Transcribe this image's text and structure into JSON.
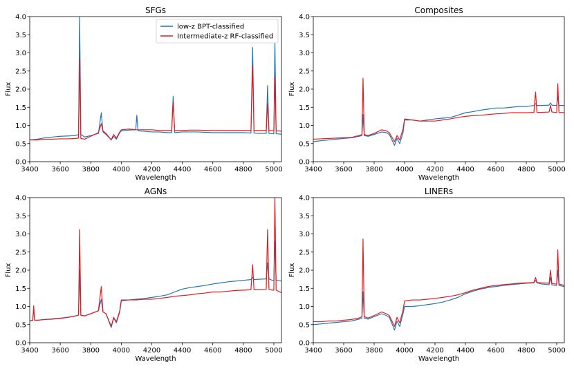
{
  "colors": {
    "low_z": "#1f77b4",
    "intermediate_z": "#e41a1c"
  },
  "chart_data": [
    {
      "type": "line",
      "title": "SFGs",
      "xlabel": "Wavelength",
      "ylabel": "Flux",
      "xlim": [
        3400,
        5050
      ],
      "ylim": [
        0,
        4.0
      ],
      "xticks": [
        "3400",
        "3600",
        "3800",
        "4000",
        "4200",
        "4400",
        "4600",
        "4800",
        "5000"
      ],
      "yticks": [
        "0.0",
        "0.5",
        "1.0",
        "1.5",
        "2.0",
        "2.5",
        "3.0",
        "3.5",
        "4.0"
      ],
      "legend": {
        "position": "top-right",
        "entries": [
          "low-z BPT-classified",
          "Intermediate-z RF-classified"
        ]
      },
      "series": [
        {
          "name": "low-z BPT-classified",
          "x": [
            3400,
            3450,
            3500,
            3550,
            3600,
            3650,
            3700,
            3720,
            3727,
            3735,
            3760,
            3800,
            3850,
            3869,
            3880,
            3900,
            3934,
            3950,
            3968,
            3990,
            4000,
            4050,
            4095,
            4102,
            4110,
            4150,
            4200,
            4250,
            4300,
            4330,
            4340,
            4350,
            4400,
            4450,
            4500,
            4600,
            4700,
            4800,
            4850,
            4861,
            4870,
            4900,
            4950,
            4959,
            4968,
            4990,
            5000,
            5007,
            5015,
            5050
          ],
          "y": [
            0.6,
            0.62,
            0.66,
            0.68,
            0.7,
            0.71,
            0.72,
            0.75,
            4.0,
            0.75,
            0.68,
            0.72,
            0.78,
            1.35,
            0.82,
            0.75,
            0.6,
            0.7,
            0.62,
            0.8,
            0.85,
            0.87,
            0.88,
            1.28,
            0.85,
            0.84,
            0.82,
            0.82,
            0.8,
            0.8,
            1.8,
            0.8,
            0.82,
            0.82,
            0.82,
            0.8,
            0.8,
            0.8,
            0.79,
            3.15,
            0.79,
            0.78,
            0.78,
            2.1,
            0.78,
            0.77,
            0.77,
            3.3,
            0.77,
            0.76
          ]
        },
        {
          "name": "Intermediate-z RF-classified",
          "x": [
            3400,
            3450,
            3500,
            3550,
            3600,
            3650,
            3700,
            3720,
            3727,
            3735,
            3760,
            3800,
            3850,
            3869,
            3880,
            3900,
            3934,
            3950,
            3968,
            3990,
            4000,
            4050,
            4102,
            4150,
            4200,
            4250,
            4300,
            4330,
            4340,
            4350,
            4400,
            4450,
            4500,
            4600,
            4700,
            4800,
            4850,
            4861,
            4870,
            4900,
            4950,
            4959,
            4968,
            4990,
            5000,
            5007,
            5015,
            5050
          ],
          "y": [
            0.6,
            0.6,
            0.62,
            0.62,
            0.63,
            0.63,
            0.64,
            0.65,
            2.85,
            0.64,
            0.62,
            0.7,
            0.8,
            1.05,
            0.85,
            0.78,
            0.6,
            0.75,
            0.65,
            0.82,
            0.88,
            0.9,
            0.88,
            0.88,
            0.88,
            0.86,
            0.86,
            0.86,
            1.65,
            0.86,
            0.86,
            0.87,
            0.87,
            0.86,
            0.86,
            0.86,
            0.86,
            2.65,
            0.86,
            0.86,
            0.86,
            1.6,
            0.86,
            0.85,
            0.85,
            2.35,
            0.85,
            0.84
          ]
        }
      ]
    },
    {
      "type": "line",
      "title": "Composites",
      "xlabel": "Wavelength",
      "ylabel": "Flux",
      "xlim": [
        3400,
        5050
      ],
      "ylim": [
        0,
        4.0
      ],
      "xticks": [
        "3400",
        "3600",
        "3800",
        "4000",
        "4200",
        "4400",
        "4600",
        "4800",
        "5000"
      ],
      "yticks": [
        "0.0",
        "0.5",
        "1.0",
        "1.5",
        "2.0",
        "2.5",
        "3.0",
        "3.5",
        "4.0"
      ],
      "series": [
        {
          "name": "low-z BPT-classified",
          "x": [
            3400,
            3450,
            3500,
            3550,
            3600,
            3650,
            3700,
            3720,
            3727,
            3735,
            3760,
            3800,
            3850,
            3880,
            3900,
            3934,
            3950,
            3968,
            3990,
            4000,
            4050,
            4100,
            4150,
            4200,
            4250,
            4300,
            4350,
            4400,
            4450,
            4500,
            4550,
            4600,
            4650,
            4700,
            4750,
            4800,
            4850,
            4861,
            4870,
            4900,
            4950,
            4959,
            4968,
            4990,
            5000,
            5007,
            5015,
            5050
          ],
          "y": [
            0.55,
            0.58,
            0.6,
            0.62,
            0.64,
            0.66,
            0.7,
            0.72,
            1.3,
            0.72,
            0.7,
            0.75,
            0.82,
            0.8,
            0.75,
            0.45,
            0.65,
            0.5,
            0.8,
            1.15,
            1.15,
            1.12,
            1.15,
            1.18,
            1.2,
            1.22,
            1.28,
            1.35,
            1.38,
            1.42,
            1.45,
            1.48,
            1.48,
            1.5,
            1.52,
            1.52,
            1.55,
            1.6,
            1.55,
            1.55,
            1.56,
            1.62,
            1.56,
            1.55,
            1.55,
            1.8,
            1.55,
            1.55
          ]
        },
        {
          "name": "Intermediate-z RF-classified",
          "x": [
            3400,
            3450,
            3500,
            3550,
            3600,
            3650,
            3700,
            3720,
            3727,
            3735,
            3760,
            3800,
            3850,
            3880,
            3900,
            3934,
            3950,
            3968,
            3990,
            4000,
            4050,
            4100,
            4150,
            4200,
            4250,
            4300,
            4350,
            4400,
            4450,
            4500,
            4550,
            4600,
            4650,
            4700,
            4750,
            4800,
            4850,
            4861,
            4870,
            4900,
            4950,
            4959,
            4968,
            4990,
            5000,
            5007,
            5015,
            5050
          ],
          "y": [
            0.62,
            0.63,
            0.64,
            0.65,
            0.66,
            0.67,
            0.72,
            0.75,
            2.3,
            0.75,
            0.72,
            0.78,
            0.88,
            0.85,
            0.8,
            0.55,
            0.72,
            0.6,
            0.9,
            1.18,
            1.15,
            1.12,
            1.12,
            1.12,
            1.15,
            1.18,
            1.22,
            1.25,
            1.27,
            1.28,
            1.3,
            1.32,
            1.33,
            1.35,
            1.35,
            1.35,
            1.36,
            1.92,
            1.36,
            1.36,
            1.37,
            1.55,
            1.37,
            1.36,
            1.36,
            2.15,
            1.36,
            1.35
          ]
        }
      ]
    },
    {
      "type": "line",
      "title": "AGNs",
      "xlabel": "Wavelength",
      "ylabel": "Flux",
      "xlim": [
        3400,
        5050
      ],
      "ylim": [
        0,
        4.0
      ],
      "xticks": [
        "3400",
        "3600",
        "3800",
        "4000",
        "4200",
        "4400",
        "4600",
        "4800",
        "5000"
      ],
      "yticks": [
        "0.0",
        "0.5",
        "1.0",
        "1.5",
        "2.0",
        "2.5",
        "3.0",
        "3.5",
        "4.0"
      ],
      "series": [
        {
          "name": "low-z BPT-classified",
          "x": [
            3400,
            3420,
            3426,
            3432,
            3450,
            3500,
            3550,
            3600,
            3650,
            3700,
            3720,
            3727,
            3735,
            3760,
            3800,
            3850,
            3869,
            3880,
            3900,
            3934,
            3950,
            3968,
            3990,
            4000,
            4050,
            4100,
            4150,
            4200,
            4250,
            4300,
            4350,
            4400,
            4450,
            4500,
            4550,
            4600,
            4650,
            4700,
            4750,
            4800,
            4850,
            4861,
            4870,
            4900,
            4950,
            4959,
            4968,
            4990,
            5000,
            5007,
            5015,
            5050
          ],
          "y": [
            0.6,
            0.62,
            0.95,
            0.62,
            0.62,
            0.64,
            0.66,
            0.68,
            0.7,
            0.74,
            0.76,
            2.0,
            0.76,
            0.74,
            0.8,
            0.88,
            1.2,
            0.85,
            0.8,
            0.42,
            0.68,
            0.55,
            0.85,
            1.15,
            1.18,
            1.2,
            1.22,
            1.25,
            1.28,
            1.32,
            1.4,
            1.48,
            1.52,
            1.55,
            1.58,
            1.62,
            1.65,
            1.68,
            1.7,
            1.72,
            1.74,
            1.8,
            1.74,
            1.75,
            1.76,
            2.2,
            1.76,
            1.72,
            1.72,
            2.8,
            1.72,
            1.7
          ]
        },
        {
          "name": "Intermediate-z RF-classified",
          "x": [
            3400,
            3420,
            3426,
            3432,
            3450,
            3500,
            3550,
            3600,
            3650,
            3700,
            3720,
            3727,
            3735,
            3760,
            3800,
            3850,
            3869,
            3880,
            3900,
            3934,
            3950,
            3968,
            3990,
            4000,
            4050,
            4100,
            4150,
            4200,
            4250,
            4300,
            4350,
            4400,
            4450,
            4500,
            4550,
            4600,
            4650,
            4700,
            4750,
            4800,
            4850,
            4861,
            4870,
            4900,
            4950,
            4959,
            4968,
            4990,
            5000,
            5007,
            5015,
            5050
          ],
          "y": [
            0.6,
            0.62,
            1.02,
            0.62,
            0.62,
            0.64,
            0.65,
            0.67,
            0.7,
            0.74,
            0.76,
            3.12,
            0.76,
            0.74,
            0.8,
            0.88,
            1.55,
            0.85,
            0.8,
            0.45,
            0.7,
            0.58,
            0.88,
            1.18,
            1.18,
            1.18,
            1.2,
            1.2,
            1.22,
            1.25,
            1.28,
            1.3,
            1.32,
            1.35,
            1.37,
            1.4,
            1.4,
            1.42,
            1.44,
            1.45,
            1.46,
            2.15,
            1.46,
            1.46,
            1.47,
            3.12,
            1.47,
            1.45,
            1.45,
            4.0,
            1.45,
            1.38
          ]
        }
      ]
    },
    {
      "type": "line",
      "title": "LINERs",
      "xlabel": "Wavelength",
      "ylabel": "Flux",
      "xlim": [
        3400,
        5050
      ],
      "ylim": [
        0,
        4.0
      ],
      "xticks": [
        "3400",
        "3600",
        "3800",
        "4000",
        "4200",
        "4400",
        "4600",
        "4800",
        "5000"
      ],
      "yticks": [
        "0.0",
        "0.5",
        "1.0",
        "1.5",
        "2.0",
        "2.5",
        "3.0",
        "3.5",
        "4.0"
      ],
      "series": [
        {
          "name": "low-z BPT-classified",
          "x": [
            3400,
            3450,
            3500,
            3550,
            3600,
            3650,
            3700,
            3720,
            3727,
            3735,
            3760,
            3800,
            3850,
            3880,
            3900,
            3934,
            3950,
            3968,
            3990,
            4000,
            4050,
            4100,
            4150,
            4200,
            4250,
            4300,
            4350,
            4400,
            4450,
            4500,
            4550,
            4600,
            4650,
            4700,
            4750,
            4800,
            4850,
            4861,
            4870,
            4900,
            4950,
            4959,
            4968,
            4990,
            5000,
            5007,
            5015,
            5050
          ],
          "y": [
            0.5,
            0.52,
            0.54,
            0.56,
            0.58,
            0.6,
            0.65,
            0.68,
            1.4,
            0.68,
            0.65,
            0.72,
            0.8,
            0.75,
            0.7,
            0.35,
            0.6,
            0.45,
            0.8,
            1.0,
            1.0,
            1.02,
            1.05,
            1.08,
            1.12,
            1.18,
            1.25,
            1.35,
            1.42,
            1.48,
            1.52,
            1.55,
            1.58,
            1.6,
            1.62,
            1.64,
            1.65,
            1.72,
            1.65,
            1.62,
            1.6,
            1.8,
            1.6,
            1.58,
            1.58,
            2.0,
            1.58,
            1.55
          ]
        },
        {
          "name": "Intermediate-z RF-classified",
          "x": [
            3400,
            3450,
            3500,
            3550,
            3600,
            3650,
            3700,
            3720,
            3727,
            3735,
            3760,
            3800,
            3850,
            3880,
            3900,
            3934,
            3950,
            3968,
            3990,
            4000,
            4050,
            4100,
            4150,
            4200,
            4250,
            4300,
            4350,
            4400,
            4450,
            4500,
            4550,
            4600,
            4650,
            4700,
            4750,
            4800,
            4850,
            4861,
            4870,
            4900,
            4950,
            4959,
            4968,
            4990,
            5000,
            5007,
            5015,
            5050
          ],
          "y": [
            0.58,
            0.58,
            0.6,
            0.6,
            0.62,
            0.64,
            0.68,
            0.72,
            2.86,
            0.72,
            0.68,
            0.75,
            0.85,
            0.8,
            0.75,
            0.45,
            0.7,
            0.55,
            0.9,
            1.15,
            1.18,
            1.18,
            1.2,
            1.22,
            1.25,
            1.28,
            1.32,
            1.38,
            1.45,
            1.5,
            1.55,
            1.58,
            1.6,
            1.62,
            1.64,
            1.65,
            1.66,
            1.8,
            1.66,
            1.65,
            1.64,
            2.0,
            1.64,
            1.62,
            1.62,
            2.56,
            1.62,
            1.58
          ]
        }
      ]
    }
  ]
}
